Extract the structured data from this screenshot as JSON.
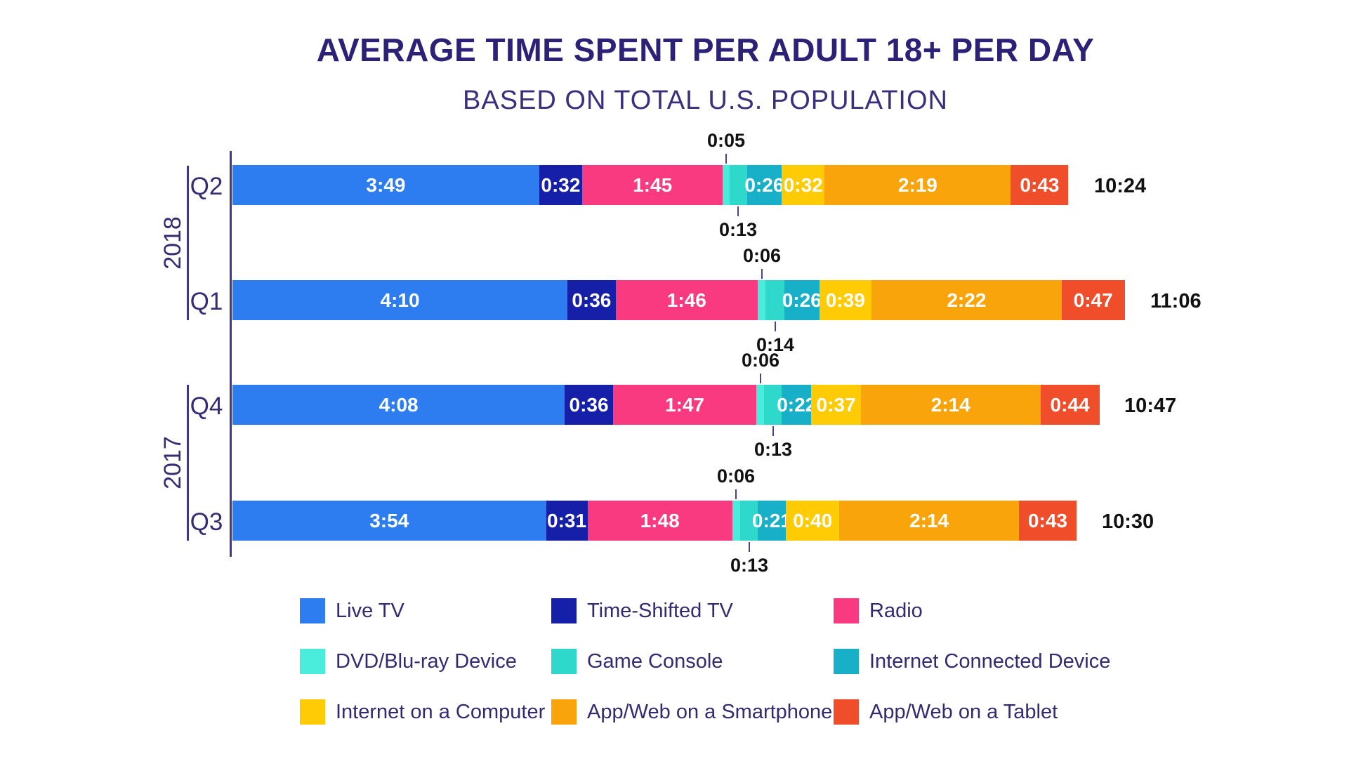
{
  "title": "AVERAGE TIME SPENT PER ADULT 18+ PER DAY",
  "subtitle": "BASED ON TOTAL U.S. POPULATION",
  "colors": {
    "live_tv": "#2E7DF0",
    "time_shifted_tv": "#161FA8",
    "radio": "#F93A80",
    "dvd_bluray": "#4AEDDC",
    "game_console": "#2ED8CA",
    "internet_connected_device": "#18AFC9",
    "internet_computer": "#FFCB05",
    "smartphone": "#FAA40B",
    "tablet": "#F04D2A",
    "axis": "#423889",
    "heading": "#2B2176",
    "label_text": "#352C73",
    "value_text": "#111111"
  },
  "chart_data": {
    "type": "bar",
    "orientation": "horizontal",
    "stacked": true,
    "unit": "hours:minutes per day",
    "categories": [
      {
        "key": "live_tv",
        "label": "Live TV"
      },
      {
        "key": "time_shifted_tv",
        "label": "Time-Shifted TV"
      },
      {
        "key": "radio",
        "label": "Radio"
      },
      {
        "key": "dvd_bluray",
        "label": "DVD/Blu-ray Device"
      },
      {
        "key": "game_console",
        "label": "Game Console"
      },
      {
        "key": "internet_connected_device",
        "label": "Internet Connected Device"
      },
      {
        "key": "internet_computer",
        "label": "Internet on a Computer"
      },
      {
        "key": "smartphone",
        "label": "App/Web on a Smartphone"
      },
      {
        "key": "tablet",
        "label": "App/Web on a Tablet"
      }
    ],
    "year_groups": [
      {
        "year": "2018",
        "quarters": [
          "Q2",
          "Q1"
        ]
      },
      {
        "year": "2017",
        "quarters": [
          "Q4",
          "Q3"
        ]
      }
    ],
    "rows": [
      {
        "quarter": "Q2",
        "year": "2018",
        "total": "10:24",
        "total_minutes": 624,
        "labels": [
          "3:49",
          "0:32",
          "1:45",
          "0:05",
          "0:13",
          "0:26",
          "0:32",
          "2:19",
          "0:43"
        ],
        "minutes": [
          229,
          32,
          105,
          5,
          13,
          26,
          32,
          139,
          43
        ]
      },
      {
        "quarter": "Q1",
        "year": "2018",
        "total": "11:06",
        "total_minutes": 666,
        "labels": [
          "4:10",
          "0:36",
          "1:46",
          "0:06",
          "0:14",
          "0:26",
          "0:39",
          "2:22",
          "0:47"
        ],
        "minutes": [
          250,
          36,
          106,
          6,
          14,
          26,
          39,
          142,
          47
        ]
      },
      {
        "quarter": "Q4",
        "year": "2017",
        "total": "10:47",
        "total_minutes": 647,
        "labels": [
          "4:08",
          "0:36",
          "1:47",
          "0:06",
          "0:13",
          "0:22",
          "0:37",
          "2:14",
          "0:44"
        ],
        "minutes": [
          248,
          36,
          107,
          6,
          13,
          22,
          37,
          134,
          44
        ]
      },
      {
        "quarter": "Q3",
        "year": "2017",
        "total": "10:30",
        "total_minutes": 630,
        "labels": [
          "3:54",
          "0:31",
          "1:48",
          "0:06",
          "0:13",
          "0:21",
          "0:40",
          "2:14",
          "0:43"
        ],
        "minutes": [
          234,
          31,
          108,
          6,
          13,
          21,
          40,
          134,
          43
        ]
      }
    ],
    "legend_position": "bottom",
    "grid": false
  },
  "legend": [
    {
      "key": "live_tv",
      "label": "Live TV"
    },
    {
      "key": "time_shifted_tv",
      "label": "Time-Shifted TV"
    },
    {
      "key": "radio",
      "label": "Radio"
    },
    {
      "key": "dvd_bluray",
      "label": "DVD/Blu-ray Device"
    },
    {
      "key": "game_console",
      "label": "Game Console"
    },
    {
      "key": "internet_connected_device",
      "label": "Internet Connected Device"
    },
    {
      "key": "internet_computer",
      "label": "Internet on a Computer"
    },
    {
      "key": "smartphone",
      "label": "App/Web on a Smartphone"
    },
    {
      "key": "tablet",
      "label": "App/Web on a Tablet"
    }
  ]
}
